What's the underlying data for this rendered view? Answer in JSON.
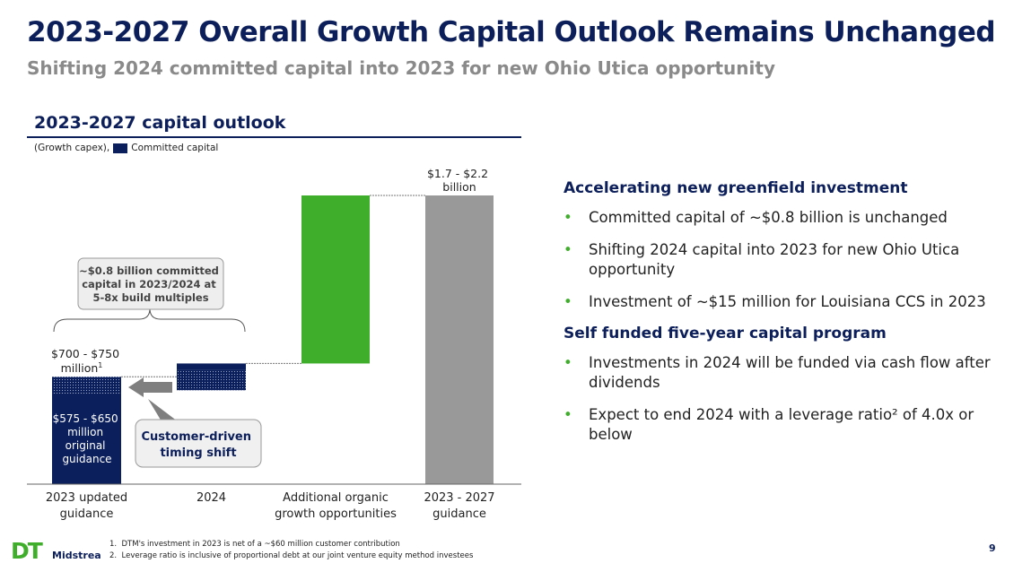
{
  "title": "2023-2027 Overall Growth Capital Outlook Remains Unchanged",
  "subtitle": "Shifting 2024 committed capital into 2023 for new Ohio Utica opportunity",
  "page_number": "9",
  "logo": {
    "text": "DT",
    "sub": "Midstream"
  },
  "footnotes": [
    "1.  DTM's investment in 2023 is net of a ~$60 million customer contribution",
    "2.  Leverage ratio is inclusive of proportional debt at our joint venture equity method investees"
  ],
  "right": {
    "sections": [
      {
        "heading": "Accelerating new greenfield investment",
        "bullets": [
          "Committed capital of ~$0.8 billion is unchanged",
          "Shifting 2024 capital into 2023 for new Ohio Utica opportunity",
          "Investment of ~$15 million for Louisiana CCS in 2023"
        ]
      },
      {
        "heading": "Self funded five-year capital program",
        "bullets": [
          "Investments in 2024 will be funded via cash flow after dividends",
          "Expect to end 2024 with a leverage ratio² of 4.0x or below"
        ]
      }
    ]
  },
  "colors": {
    "committed": "#0b1f5c",
    "additional": "#3fae2a",
    "total": "#999999",
    "title": "#0c1f5a"
  },
  "chart_data": {
    "type": "bar",
    "subtype": "waterfall",
    "title": "2023-2027 capital outlook",
    "unit_note": "(Growth capex),",
    "legend": [
      "Committed capital"
    ],
    "categories": [
      "2023 updated guidance",
      "2024",
      "Additional organic growth opportunities",
      "2023 - 2027 guidance"
    ],
    "bars": [
      {
        "category": "2023 updated guidance",
        "start": 0,
        "end": 725,
        "original_portion": 612,
        "color": "#0b1f5c"
      },
      {
        "category": "2024",
        "start": 725,
        "end": 815,
        "shifted_portion": 110,
        "color": "#0b1f5c"
      },
      {
        "category": "Additional organic growth opportunities",
        "start": 815,
        "end": 1950,
        "color": "#3fae2a"
      },
      {
        "category": "2023 - 2027 guidance",
        "start": 0,
        "end": 1950,
        "color": "#999999"
      }
    ],
    "labels": {
      "bar1_top": [
        "$700 - $750",
        "million"
      ],
      "bar1_top_sup": "1",
      "bar1_inner": [
        "$575 - $650",
        "million",
        "original",
        "guidance"
      ],
      "bar4_top": [
        "$1.7 - $2.2",
        "billion"
      ],
      "brace_callout": [
        "~$0.8 billion committed",
        "capital in 2023/2024 at",
        "5-8x build multiples"
      ],
      "shift_callout": [
        "Customer-driven",
        "timing shift"
      ]
    }
  }
}
